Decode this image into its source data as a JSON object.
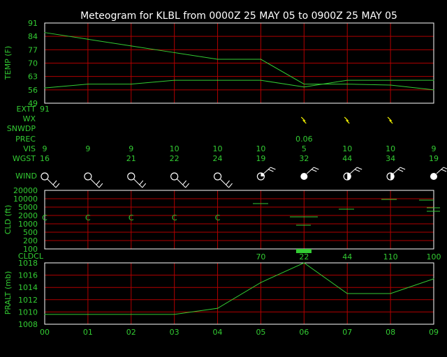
{
  "title": "Meteogram for KLBL from 0000Z 25 MAY 05 to 0900Z 25 MAY 05",
  "hours": [
    "00",
    "01",
    "02",
    "03",
    "04",
    "05",
    "06",
    "07",
    "08",
    "09"
  ],
  "colors": {
    "background": "#000000",
    "grid": "#b00000",
    "text": "#33cc33",
    "title": "#ffffff",
    "accent": "#ffff00"
  },
  "chart_data": [
    {
      "type": "line",
      "ylabel": "TEMP (F)",
      "ylim": [
        49,
        91
      ],
      "yticks": [
        "91",
        "84",
        "77",
        "70",
        "63",
        "56",
        "49"
      ],
      "x": [
        0,
        1,
        2,
        3,
        4,
        5,
        6,
        7,
        8,
        9
      ],
      "series": [
        {
          "values": [
            86,
            82.5,
            79,
            75.5,
            72,
            72,
            59,
            59,
            58.5,
            56
          ]
        },
        {
          "values": [
            57,
            59,
            59,
            61,
            61,
            61,
            57.5,
            61,
            61,
            61
          ]
        }
      ]
    },
    {
      "type": "line",
      "ylabel": "CLD (ft)",
      "yticks": [
        "20000",
        "10000",
        "5000",
        "2000",
        "1000",
        "500",
        "200",
        "100"
      ],
      "markers": [
        {
          "x": 0,
          "text": "C"
        },
        {
          "x": 1,
          "text": "C"
        },
        {
          "x": 2,
          "text": "C"
        },
        {
          "x": 3,
          "text": "C"
        },
        {
          "x": 4,
          "text": "C"
        }
      ]
    },
    {
      "type": "line",
      "ylabel": "PRALT (mb)",
      "ylim": [
        1008,
        1018
      ],
      "yticks": [
        "1018",
        "1016",
        "1014",
        "1012",
        "1010",
        "1008"
      ],
      "x": [
        0,
        1,
        2,
        3,
        4,
        5,
        6,
        7,
        8,
        9
      ],
      "series": [
        {
          "values": [
            1009.6,
            1009.6,
            1009.6,
            1009.6,
            1010.6,
            1014.8,
            1018,
            1013,
            1013,
            1015.4
          ]
        }
      ]
    }
  ],
  "rows": {
    "extt": {
      "label": "EXTT",
      "values": [
        "91",
        "",
        "",
        "",
        "",
        "",
        "",
        "",
        "",
        ""
      ]
    },
    "wx": {
      "label": "WX"
    },
    "snwdp": {
      "label": "SNWDP"
    },
    "prec": {
      "label": "PREC",
      "values": [
        "",
        "",
        "",
        "",
        "",
        "",
        "0.06",
        "",
        "",
        ""
      ]
    },
    "vis": {
      "label": "VIS",
      "values": [
        "9",
        "9",
        "9",
        "10",
        "10",
        "10",
        "5",
        "10",
        "10",
        "9"
      ]
    },
    "wgst": {
      "label": "WGST",
      "values": [
        "16",
        "",
        "21",
        "22",
        "24",
        "19",
        "32",
        "44",
        "34",
        "19"
      ]
    },
    "wind": {
      "label": "WIND"
    },
    "cldcl": {
      "label": "CLDCL",
      "values": [
        "",
        "",
        "",
        "",
        "",
        "70",
        "22",
        "44",
        "110",
        "100"
      ]
    }
  },
  "wx_symbols": [
    6,
    7,
    8
  ],
  "wind_cover": [
    "clear",
    "clear",
    "clear",
    "clear",
    "clear",
    "quarter",
    "overcast",
    "half",
    "half",
    "overcast"
  ]
}
